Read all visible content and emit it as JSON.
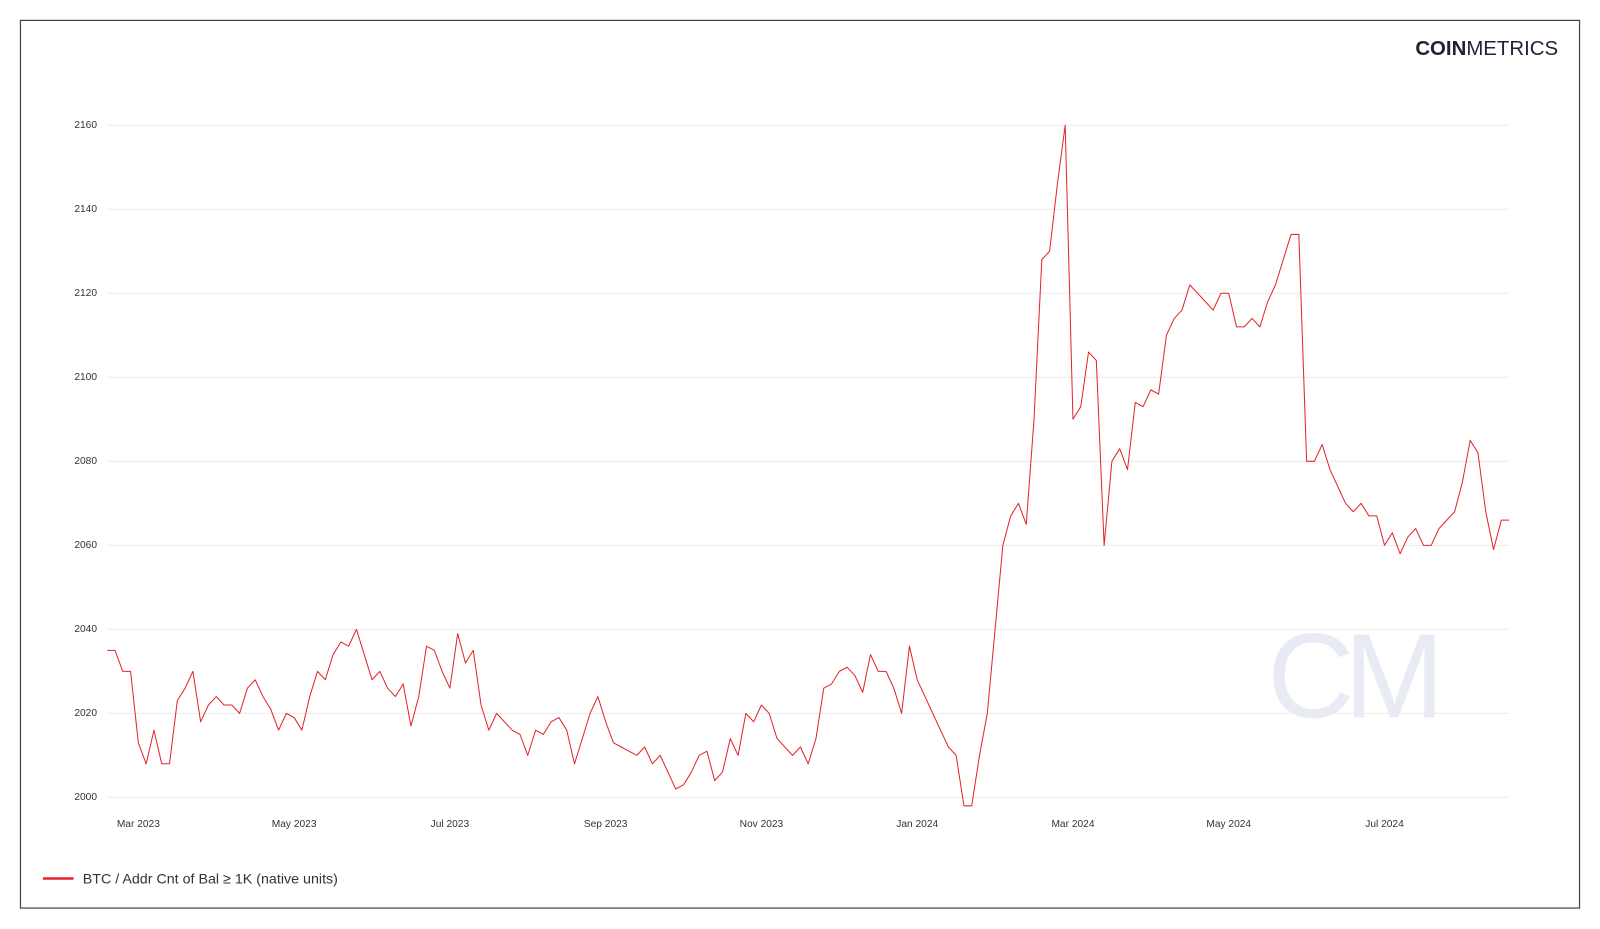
{
  "logo": {
    "bold": "COIN",
    "light": "METRICS"
  },
  "watermark": "CM",
  "chart_data": {
    "type": "line",
    "categories": [
      null,
      null,
      null,
      null,
      "Mar 2023",
      null,
      null,
      null,
      null,
      null,
      null,
      null,
      null,
      null,
      null,
      null,
      null,
      null,
      null,
      null,
      null,
      null,
      null,
      null,
      "May 2023",
      null,
      null,
      null,
      null,
      null,
      null,
      null,
      null,
      null,
      null,
      null,
      null,
      null,
      null,
      null,
      null,
      null,
      null,
      null,
      "Jul 2023",
      null,
      null,
      null,
      null,
      null,
      null,
      null,
      null,
      null,
      null,
      null,
      null,
      null,
      null,
      null,
      null,
      null,
      null,
      null,
      "Sep 2023",
      null,
      null,
      null,
      null,
      null,
      null,
      null,
      null,
      null,
      null,
      null,
      null,
      null,
      null,
      null,
      null,
      null,
      null,
      null,
      "Nov 2023",
      null,
      null,
      null,
      null,
      null,
      null,
      null,
      null,
      null,
      null,
      null,
      null,
      null,
      null,
      null,
      null,
      null,
      null,
      null,
      "Jan 2024",
      null,
      null,
      null,
      null,
      null,
      null,
      null,
      null,
      null,
      null,
      null,
      null,
      null,
      null,
      null,
      null,
      null,
      null,
      null,
      "Mar 2024",
      null,
      null,
      null,
      null,
      null,
      null,
      null,
      null,
      null,
      null,
      null,
      null,
      null,
      null,
      null,
      null,
      null,
      null,
      null,
      "May 2024",
      null,
      null,
      null,
      null,
      null,
      null,
      null,
      null,
      null,
      null,
      null,
      null,
      null,
      null,
      null,
      null,
      null,
      null,
      null,
      "Jul 2024",
      null,
      null,
      null,
      null,
      null,
      null,
      null,
      null,
      null,
      null,
      null,
      null,
      null,
      null,
      null,
      null
    ],
    "series": [
      {
        "name": "BTC / Addr Cnt of Bal ≥ 1K (native units)",
        "color": "#e3242b",
        "values": [
          2035,
          2035,
          2030,
          2030,
          2013,
          2008,
          2016,
          2008,
          2008,
          2023,
          2026,
          2030,
          2018,
          2022,
          2024,
          2022,
          2022,
          2020,
          2026,
          2028,
          2024,
          2021,
          2016,
          2020,
          2019,
          2016,
          2024,
          2030,
          2028,
          2034,
          2037,
          2036,
          2040,
          2034,
          2028,
          2030,
          2026,
          2024,
          2027,
          2017,
          2024,
          2036,
          2035,
          2030,
          2026,
          2039,
          2032,
          2035,
          2022,
          2016,
          2020,
          2018,
          2016,
          2015,
          2010,
          2016,
          2015,
          2018,
          2019,
          2016,
          2008,
          2014,
          2020,
          2024,
          2018,
          2013,
          2012,
          2011,
          2010,
          2012,
          2008,
          2010,
          2006,
          2002,
          2003,
          2006,
          2010,
          2011,
          2004,
          2006,
          2014,
          2010,
          2020,
          2018,
          2022,
          2020,
          2014,
          2012,
          2010,
          2012,
          2008,
          2014,
          2026,
          2027,
          2030,
          2031,
          2029,
          2025,
          2034,
          2030,
          2030,
          2026,
          2020,
          2036,
          2028,
          2024,
          2020,
          2016,
          2012,
          2010,
          1998,
          1998,
          2010,
          2020,
          2040,
          2060,
          2067,
          2070,
          2065,
          2090,
          2128,
          2130,
          2146,
          2160,
          2090,
          2093,
          2106,
          2104,
          2060,
          2080,
          2083,
          2078,
          2094,
          2093,
          2097,
          2096,
          2110,
          2114,
          2116,
          2122,
          2120,
          2118,
          2116,
          2120,
          2120,
          2112,
          2112,
          2114,
          2112,
          2118,
          2122,
          2128,
          2134,
          2134,
          2080,
          2080,
          2084,
          2078,
          2074,
          2070,
          2068,
          2070,
          2067,
          2067,
          2060,
          2063,
          2058,
          2062,
          2064,
          2060,
          2060,
          2064,
          2066,
          2068,
          2075,
          2085,
          2082,
          2068,
          2059,
          2066,
          2066
        ]
      }
    ],
    "ylim": [
      1996,
      2166
    ],
    "yticks": [
      2000,
      2020,
      2040,
      2060,
      2080,
      2100,
      2120,
      2140,
      2160
    ],
    "grid": true,
    "legend": "bottom-left"
  }
}
